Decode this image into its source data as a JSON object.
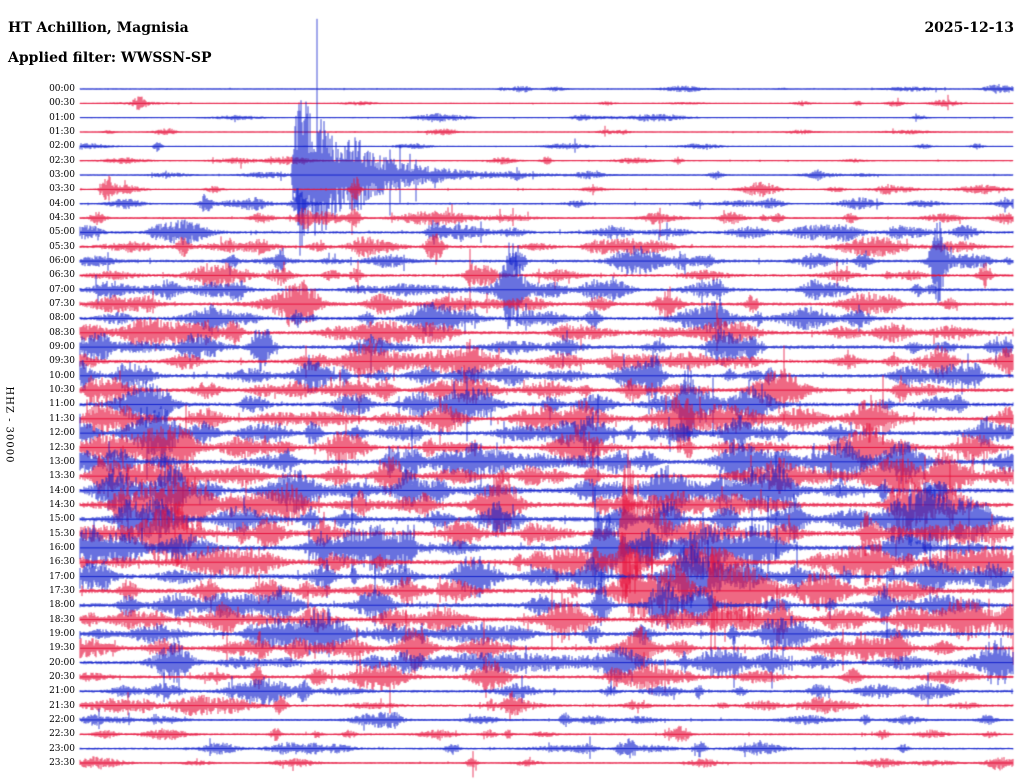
{
  "header": {
    "station_title": "HT Achillion, Magnisia",
    "date": "2025-12-13",
    "filter_label": "Applied filter: WWSSN-SP"
  },
  "chart_data": {
    "type": "line",
    "subtype": "helicorder-day-plot",
    "title": "HT Achillion, Magnisia",
    "date": "2025-12-13",
    "filter": "WWSSN-SP",
    "ylabel": "HHZ - 30000",
    "row_interval_minutes": 30,
    "minutes_per_row": 30,
    "legend": "none",
    "grid": false,
    "colors": {
      "red": "#e6133c",
      "blue": "#1322cc"
    },
    "rows": [
      {
        "t": "00:00",
        "color": "blue",
        "base": 0.5,
        "bursts": 8
      },
      {
        "t": "00:30",
        "color": "red",
        "base": 0.5,
        "bursts": 8
      },
      {
        "t": "01:00",
        "color": "blue",
        "base": 0.5,
        "bursts": 9
      },
      {
        "t": "01:30",
        "color": "red",
        "base": 0.5,
        "bursts": 8
      },
      {
        "t": "02:00",
        "color": "blue",
        "base": 0.5,
        "bursts": 7
      },
      {
        "t": "02:30",
        "color": "red",
        "base": 0.6,
        "bursts": 9
      },
      {
        "t": "03:00",
        "color": "blue",
        "base": 0.6,
        "bursts": 9
      },
      {
        "t": "03:30",
        "color": "red",
        "base": 0.7,
        "bursts": 10
      },
      {
        "t": "04:00",
        "color": "blue",
        "base": 0.8,
        "bursts": 12
      },
      {
        "t": "04:30",
        "color": "red",
        "base": 1.0,
        "bursts": 14
      },
      {
        "t": "05:00",
        "color": "blue",
        "base": 1.3,
        "bursts": 18
      },
      {
        "t": "05:30",
        "color": "red",
        "base": 1.3,
        "bursts": 18
      },
      {
        "t": "06:00",
        "color": "blue",
        "base": 1.4,
        "bursts": 18
      },
      {
        "t": "06:30",
        "color": "red",
        "base": 1.4,
        "bursts": 18
      },
      {
        "t": "07:00",
        "color": "blue",
        "base": 1.5,
        "bursts": 20
      },
      {
        "t": "07:30",
        "color": "red",
        "base": 1.6,
        "bursts": 20
      },
      {
        "t": "08:00",
        "color": "blue",
        "base": 1.7,
        "bursts": 22
      },
      {
        "t": "08:30",
        "color": "red",
        "base": 1.8,
        "bursts": 22
      },
      {
        "t": "09:00",
        "color": "blue",
        "base": 1.8,
        "bursts": 22
      },
      {
        "t": "09:30",
        "color": "red",
        "base": 1.8,
        "bursts": 24
      },
      {
        "t": "10:00",
        "color": "blue",
        "base": 1.9,
        "bursts": 24
      },
      {
        "t": "10:30",
        "color": "red",
        "base": 1.9,
        "bursts": 24
      },
      {
        "t": "11:00",
        "color": "blue",
        "base": 2.0,
        "bursts": 25
      },
      {
        "t": "11:30",
        "color": "red",
        "base": 2.0,
        "bursts": 25
      },
      {
        "t": "12:00",
        "color": "blue",
        "base": 2.0,
        "bursts": 26
      },
      {
        "t": "12:30",
        "color": "red",
        "base": 2.1,
        "bursts": 26
      },
      {
        "t": "13:00",
        "color": "blue",
        "base": 2.2,
        "bursts": 26
      },
      {
        "t": "13:30",
        "color": "red",
        "base": 2.2,
        "bursts": 26
      },
      {
        "t": "14:00",
        "color": "blue",
        "base": 2.4,
        "bursts": 28
      },
      {
        "t": "14:30",
        "color": "red",
        "base": 2.4,
        "bursts": 28
      },
      {
        "t": "15:00",
        "color": "blue",
        "base": 2.5,
        "bursts": 28
      },
      {
        "t": "15:30",
        "color": "red",
        "base": 2.5,
        "bursts": 28
      },
      {
        "t": "16:00",
        "color": "blue",
        "base": 2.5,
        "bursts": 28
      },
      {
        "t": "16:30",
        "color": "red",
        "base": 2.5,
        "bursts": 28
      },
      {
        "t": "17:00",
        "color": "blue",
        "base": 2.4,
        "bursts": 26
      },
      {
        "t": "17:30",
        "color": "red",
        "base": 2.4,
        "bursts": 26
      },
      {
        "t": "18:00",
        "color": "blue",
        "base": 2.2,
        "bursts": 24
      },
      {
        "t": "18:30",
        "color": "red",
        "base": 2.2,
        "bursts": 24
      },
      {
        "t": "19:00",
        "color": "blue",
        "base": 2.0,
        "bursts": 22
      },
      {
        "t": "19:30",
        "color": "red",
        "base": 2.0,
        "bursts": 22
      },
      {
        "t": "20:00",
        "color": "blue",
        "base": 1.8,
        "bursts": 20
      },
      {
        "t": "20:30",
        "color": "red",
        "base": 1.6,
        "bursts": 18
      },
      {
        "t": "21:00",
        "color": "blue",
        "base": 1.4,
        "bursts": 16
      },
      {
        "t": "21:30",
        "color": "red",
        "base": 1.3,
        "bursts": 16
      },
      {
        "t": "22:00",
        "color": "blue",
        "base": 1.1,
        "bursts": 13
      },
      {
        "t": "22:30",
        "color": "red",
        "base": 1.0,
        "bursts": 12
      },
      {
        "t": "23:00",
        "color": "blue",
        "base": 1.0,
        "bursts": 12
      },
      {
        "t": "23:30",
        "color": "red",
        "base": 0.8,
        "bursts": 10
      }
    ],
    "events": [
      {
        "row": 1,
        "x": 0.064,
        "amp": 6,
        "w": 6
      },
      {
        "row": 4,
        "x": 0.083,
        "amp": 5,
        "w": 4
      },
      {
        "row": 5,
        "x": 0.5,
        "amp": 4,
        "w": 5
      },
      {
        "row": 6,
        "x": 0.232,
        "amp": 88,
        "w": 26,
        "decay": true
      },
      {
        "row": 6,
        "x": 0.3,
        "amp": 9,
        "w": 8
      },
      {
        "row": 7,
        "x": 0.03,
        "amp": 12,
        "w": 6
      },
      {
        "row": 7,
        "x": 0.295,
        "amp": 10,
        "w": 5
      },
      {
        "row": 8,
        "x": 0.135,
        "amp": 10,
        "w": 6
      },
      {
        "row": 8,
        "x": 0.235,
        "amp": 16,
        "w": 5
      },
      {
        "row": 9,
        "x": 0.24,
        "amp": 8,
        "w": 6
      },
      {
        "row": 9,
        "x": 0.295,
        "amp": 10,
        "w": 5
      },
      {
        "row": 10,
        "x": 0.38,
        "amp": 12,
        "w": 7
      },
      {
        "row": 11,
        "x": 0.11,
        "amp": 10,
        "w": 6
      },
      {
        "row": 11,
        "x": 0.38,
        "amp": 18,
        "w": 8
      },
      {
        "row": 12,
        "x": 0.47,
        "amp": 16,
        "w": 6
      },
      {
        "row": 12,
        "x": 0.6,
        "amp": 8,
        "w": 25
      },
      {
        "row": 12,
        "x": 0.92,
        "amp": 40,
        "w": 7
      },
      {
        "row": 13,
        "x": 0.97,
        "amp": 12,
        "w": 6
      },
      {
        "row": 14,
        "x": 0.17,
        "amp": 10,
        "w": 7
      },
      {
        "row": 14,
        "x": 0.463,
        "amp": 40,
        "w": 10
      },
      {
        "row": 15,
        "x": 0.25,
        "amp": 8,
        "w": 7
      },
      {
        "row": 15,
        "x": 0.72,
        "amp": 10,
        "w": 6
      },
      {
        "row": 16,
        "x": 0.55,
        "amp": 8,
        "w": 7
      },
      {
        "row": 16,
        "x": 0.685,
        "amp": 10,
        "w": 6
      },
      {
        "row": 17,
        "x": 0.165,
        "amp": 12,
        "w": 8
      },
      {
        "row": 18,
        "x": 0.195,
        "amp": 28,
        "w": 9
      },
      {
        "row": 18,
        "x": 0.72,
        "amp": 10,
        "w": 6
      },
      {
        "row": 19,
        "x": 0.42,
        "amp": 10,
        "w": 6
      },
      {
        "row": 19,
        "x": 0.92,
        "amp": 10,
        "w": 6
      },
      {
        "row": 20,
        "x": 0.615,
        "amp": 24,
        "w": 8
      },
      {
        "row": 21,
        "x": 0.3,
        "amp": 10,
        "w": 6
      },
      {
        "row": 21,
        "x": 0.88,
        "amp": 12,
        "w": 6
      },
      {
        "row": 22,
        "x": 0.651,
        "amp": 30,
        "w": 8
      },
      {
        "row": 23,
        "x": 0.05,
        "amp": 8,
        "w": 8
      },
      {
        "row": 23,
        "x": 0.645,
        "amp": 26,
        "w": 8
      },
      {
        "row": 24,
        "x": 0.25,
        "amp": 12,
        "w": 7
      },
      {
        "row": 24,
        "x": 0.97,
        "amp": 10,
        "w": 6
      },
      {
        "row": 25,
        "x": 0.96,
        "amp": 14,
        "w": 18
      },
      {
        "row": 26,
        "x": 0.005,
        "amp": 10,
        "w": 14
      },
      {
        "row": 26,
        "x": 0.42,
        "amp": 14,
        "w": 9
      },
      {
        "row": 27,
        "x": 0.08,
        "amp": 13,
        "w": 42
      },
      {
        "row": 27,
        "x": 0.55,
        "amp": 10,
        "w": 7
      },
      {
        "row": 28,
        "x": 0.35,
        "amp": 12,
        "w": 8
      },
      {
        "row": 28,
        "x": 0.92,
        "amp": 14,
        "w": 7
      },
      {
        "row": 29,
        "x": 0.09,
        "amp": 15,
        "w": 45
      },
      {
        "row": 29,
        "x": 0.56,
        "amp": 10,
        "w": 7
      },
      {
        "row": 30,
        "x": 0.05,
        "amp": 10,
        "w": 8
      },
      {
        "row": 30,
        "x": 0.45,
        "amp": 12,
        "w": 8
      },
      {
        "row": 31,
        "x": 0.08,
        "amp": 11,
        "w": 38
      },
      {
        "row": 31,
        "x": 0.583,
        "amp": 96,
        "w": 10,
        "decay": true
      },
      {
        "row": 32,
        "x": 0.05,
        "amp": 9,
        "w": 15
      },
      {
        "row": 32,
        "x": 0.562,
        "amp": 42,
        "w": 10
      },
      {
        "row": 33,
        "x": 0.15,
        "amp": 11,
        "w": 38
      },
      {
        "row": 33,
        "x": 0.583,
        "amp": 24,
        "w": 6
      },
      {
        "row": 34,
        "x": 0.55,
        "amp": 16,
        "w": 8
      },
      {
        "row": 35,
        "x": 0.35,
        "amp": 11,
        "w": 7
      },
      {
        "row": 35,
        "x": 0.677,
        "amp": 46,
        "w": 10,
        "decay": true
      },
      {
        "row": 36,
        "x": 0.56,
        "amp": 20,
        "w": 7
      },
      {
        "row": 36,
        "x": 0.62,
        "amp": 17,
        "w": 8
      },
      {
        "row": 37,
        "x": 0.68,
        "amp": 12,
        "w": 7
      },
      {
        "row": 37,
        "x": 0.75,
        "amp": 10,
        "w": 6
      },
      {
        "row": 38,
        "x": 0.25,
        "amp": 8,
        "w": 6
      },
      {
        "row": 38,
        "x": 0.55,
        "amp": 10,
        "w": 6
      },
      {
        "row": 39,
        "x": 0.875,
        "amp": 12,
        "w": 7
      },
      {
        "row": 40,
        "x": 0.45,
        "amp": 9,
        "w": 110
      },
      {
        "row": 41,
        "x": 0.19,
        "amp": 13,
        "w": 5
      },
      {
        "row": 42,
        "x": 0.24,
        "amp": 9,
        "w": 5
      },
      {
        "row": 43,
        "x": 0.215,
        "amp": 13,
        "w": 5
      },
      {
        "row": 44,
        "x": 0.52,
        "amp": 7,
        "w": 5
      },
      {
        "row": 45,
        "x": 0.21,
        "amp": 6,
        "w": 5
      },
      {
        "row": 45,
        "x": 0.86,
        "amp": 7,
        "w": 5
      },
      {
        "row": 46,
        "x": 0.59,
        "amp": 9,
        "w": 5
      },
      {
        "row": 46,
        "x": 0.665,
        "amp": 9,
        "w": 5
      },
      {
        "row": 47,
        "x": 0.42,
        "amp": 5,
        "w": 5
      }
    ]
  }
}
